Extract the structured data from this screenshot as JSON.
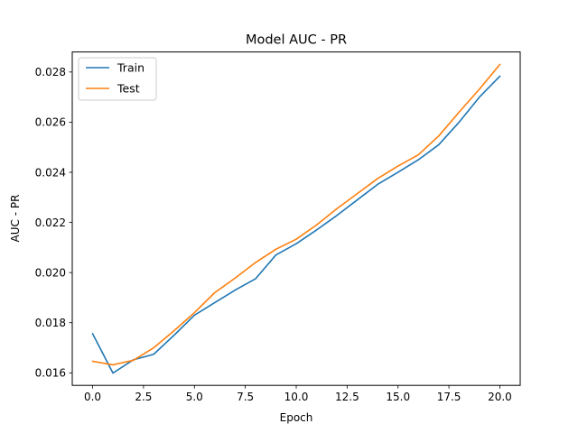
{
  "chart_data": {
    "type": "line",
    "title": "Model AUC - PR",
    "xlabel": "Epoch",
    "ylabel": "AUC - PR",
    "xlim": [
      -1.0,
      21.0
    ],
    "ylim": [
      0.0155,
      0.0288
    ],
    "xticks": [
      0.0,
      2.5,
      5.0,
      7.5,
      10.0,
      12.5,
      15.0,
      17.5,
      20.0
    ],
    "xtick_labels": [
      "0.0",
      "2.5",
      "5.0",
      "7.5",
      "10.0",
      "12.5",
      "15.0",
      "17.5",
      "20.0"
    ],
    "yticks": [
      0.016,
      0.018,
      0.02,
      0.022,
      0.024,
      0.026,
      0.028
    ],
    "ytick_labels": [
      "0.016",
      "0.018",
      "0.020",
      "0.022",
      "0.024",
      "0.026",
      "0.028"
    ],
    "grid": false,
    "legend_position": "top-left",
    "x": [
      0,
      1,
      2,
      3,
      4,
      5,
      6,
      7,
      8,
      9,
      10,
      11,
      12,
      13,
      14,
      15,
      16,
      17,
      18,
      19,
      20
    ],
    "series": [
      {
        "name": "Train",
        "color": "#1f77b4",
        "values": [
          0.01756,
          0.01599,
          0.01652,
          0.01674,
          0.0175,
          0.0183,
          0.0188,
          0.0193,
          0.01975,
          0.0207,
          0.02115,
          0.0217,
          0.02228,
          0.0229,
          0.02352,
          0.024,
          0.0245,
          0.0251,
          0.026,
          0.027,
          0.02783
        ]
      },
      {
        "name": "Test",
        "color": "#ff7f0e",
        "values": [
          0.01646,
          0.01632,
          0.0165,
          0.017,
          0.01768,
          0.0184,
          0.0192,
          0.01978,
          0.0204,
          0.02093,
          0.02133,
          0.0219,
          0.02255,
          0.02315,
          0.02375,
          0.02425,
          0.0247,
          0.02545,
          0.0264,
          0.02732,
          0.0283
        ]
      }
    ]
  }
}
